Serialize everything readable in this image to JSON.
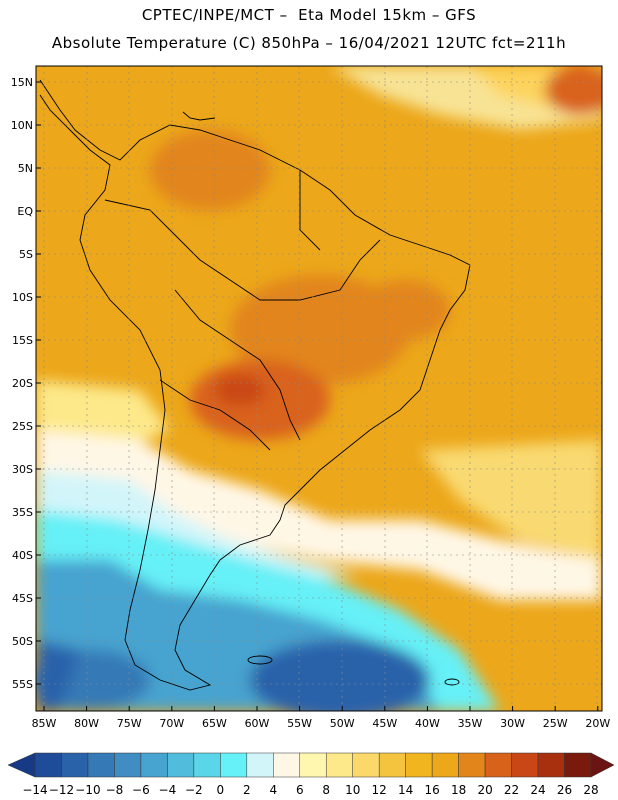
{
  "header": {
    "line1": "CPTEC/INPE/MCT –  Eta Model 15km – GFS",
    "line2": "Absolute Temperature (C) 850hPa – 16/04/2021 12UTC fct=211h"
  },
  "map": {
    "lat_labels": [
      "15N",
      "10N",
      "5N",
      "EQ",
      "5S",
      "10S",
      "15S",
      "20S",
      "25S",
      "30S",
      "35S",
      "40S",
      "45S",
      "50S",
      "55S"
    ],
    "lon_labels": [
      "85W",
      "80W",
      "75W",
      "70W",
      "65W",
      "60W",
      "55W",
      "50W",
      "45W",
      "40W",
      "35W",
      "30W",
      "25W",
      "20W"
    ]
  },
  "colorbar": {
    "labels": [
      "-14",
      "-12",
      "-10",
      "-8",
      "-6",
      "-4",
      "-2",
      "0",
      "2",
      "4",
      "6",
      "8",
      "10",
      "12",
      "14",
      "16",
      "18",
      "20",
      "22",
      "24",
      "26",
      "28"
    ],
    "colors": [
      "#173a87",
      "#1e4c98",
      "#2a62aa",
      "#3579b6",
      "#3f8dc2",
      "#47a3cf",
      "#52bcdc",
      "#5ad6e8",
      "#66f0f7",
      "#d2f5fa",
      "#fff7e6",
      "#fff6b0",
      "#fde98a",
      "#fad86a",
      "#f5c43f",
      "#f0b51f",
      "#eca71a",
      "#e2851a",
      "#d9621a",
      "#c94616",
      "#a8300f",
      "#7a1a0c",
      "#6a1414"
    ]
  }
}
